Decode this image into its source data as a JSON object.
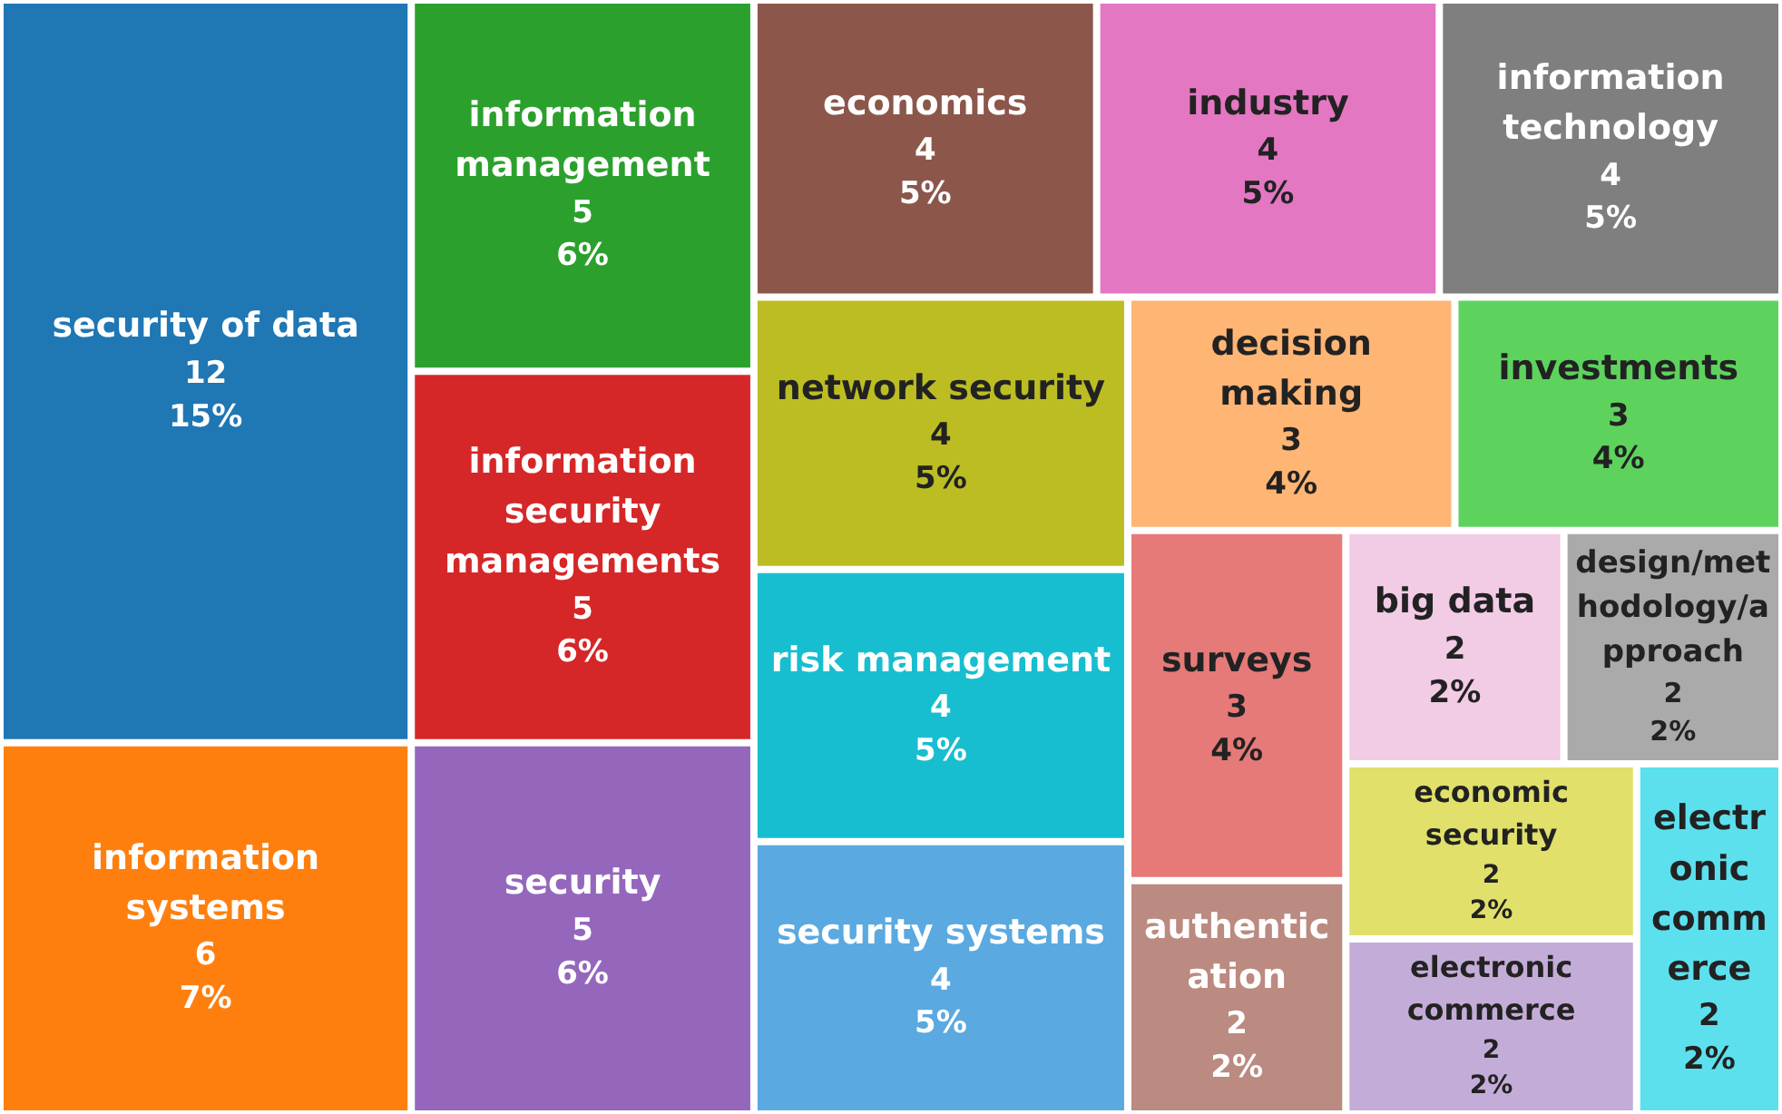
{
  "chart_data": {
    "type": "other",
    "categories": [
      "security of data",
      "information systems",
      "information management",
      "information security managements",
      "security",
      "economics",
      "industry",
      "information technology",
      "network security",
      "risk management",
      "security systems",
      "decision making",
      "investments",
      "surveys",
      "authentication",
      "big data",
      "design/methodology/approach",
      "economic security",
      "electronic commerce",
      "electronic commerce"
    ],
    "values": [
      12,
      6,
      5,
      5,
      5,
      4,
      4,
      4,
      4,
      4,
      4,
      3,
      3,
      3,
      2,
      2,
      2,
      2,
      2,
      2
    ],
    "data_labels": true,
    "annotations": [
      "15%",
      "7%",
      "6%",
      "6%",
      "6%",
      "5%",
      "5%",
      "5%",
      "5%",
      "5%",
      "5%",
      "4%",
      "4%",
      "4%",
      "2%",
      "2%",
      "2%",
      "2%",
      "2%",
      "2%"
    ],
    "colors": [
      "#1f77b4",
      "#ff7f0e",
      "#2ca02c",
      "#d62728",
      "#9467bd",
      "#8c564b",
      "#e377c2",
      "#7f7f7f",
      "#bcbd22",
      "#17becf",
      "#5aa9e0",
      "#ffb574",
      "#5dd35d",
      "#e57a78",
      "#bb8a80",
      "#f2cbe5",
      "#aaaaaa",
      "#e0e06b",
      "#c4acd8",
      "#5ce0ee"
    ]
  }
}
